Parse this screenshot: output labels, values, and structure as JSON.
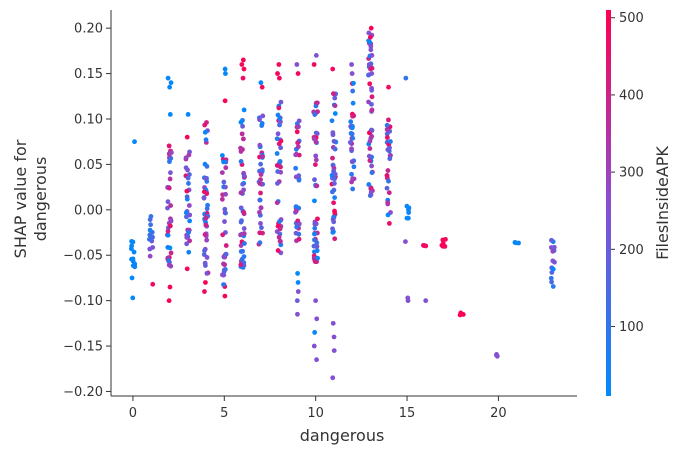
{
  "chart_data": {
    "type": "scatter",
    "title": "",
    "xlabel": "dangerous",
    "ylabel_line1": "SHAP value for",
    "ylabel_line2": "dangerous",
    "colorbar_label": "FilesInsideAPK",
    "xlim": [
      -1.2,
      24.3
    ],
    "ylim": [
      -0.205,
      0.22
    ],
    "x_ticks": [
      0,
      5,
      10,
      15,
      20
    ],
    "y_ticks": [
      -0.2,
      -0.15,
      -0.1,
      -0.05,
      0.0,
      0.05,
      0.1,
      0.15,
      0.2
    ],
    "y_tick_labels": [
      "−0.20",
      "−0.15",
      "−0.10",
      "−0.05",
      "0.00",
      "0.05",
      "0.10",
      "0.15",
      "0.20"
    ],
    "colorbar_range": [
      10,
      510
    ],
    "colorbar_ticks": [
      100,
      200,
      300,
      400,
      500
    ],
    "colormap": [
      "#008afb",
      "#ff0052"
    ],
    "grid": false,
    "columns": [
      {
        "x": 0,
        "range": [
          -0.065,
          -0.02
        ],
        "color_range": [
          15,
          30
        ],
        "extra": [
          [
            0.075,
            20
          ],
          [
            -0.097,
            15
          ],
          [
            -0.075,
            20
          ]
        ]
      },
      {
        "x": 1,
        "range": [
          -0.055,
          -0.005
        ],
        "color_range": [
          15,
          300
        ],
        "extra": [
          [
            -0.082,
            480
          ]
        ]
      },
      {
        "x": 2,
        "range": [
          -0.065,
          0.075
        ],
        "color_range": [
          15,
          500
        ],
        "extra": [
          [
            0.145,
            20
          ],
          [
            0.14,
            20
          ],
          [
            0.135,
            20
          ],
          [
            -0.085,
            500
          ],
          [
            -0.1,
            500
          ],
          [
            0.105,
            20
          ]
        ]
      },
      {
        "x": 3,
        "range": [
          -0.05,
          0.07
        ],
        "color_range": [
          15,
          500
        ],
        "extra": [
          [
            0.105,
            20
          ],
          [
            0.08,
            500
          ],
          [
            -0.065,
            480
          ]
        ]
      },
      {
        "x": 4,
        "range": [
          -0.07,
          0.1
        ],
        "color_range": [
          15,
          500
        ],
        "extra": [
          [
            -0.08,
            500
          ],
          [
            -0.09,
            480
          ]
        ]
      },
      {
        "x": 5,
        "range": [
          -0.085,
          0.06
        ],
        "color_range": [
          15,
          500
        ],
        "extra": [
          [
            0.155,
            20
          ],
          [
            0.15,
            20
          ],
          [
            0.12,
            500
          ],
          [
            -0.095,
            500
          ]
        ]
      },
      {
        "x": 6,
        "range": [
          -0.075,
          0.1
        ],
        "color_range": [
          15,
          500
        ],
        "extra": [
          [
            0.165,
            500
          ],
          [
            0.16,
            480
          ],
          [
            0.155,
            500
          ],
          [
            0.145,
            480
          ],
          [
            0.11,
            20
          ]
        ]
      },
      {
        "x": 7,
        "range": [
          -0.04,
          0.105
        ],
        "color_range": [
          15,
          500
        ],
        "extra": [
          [
            0.14,
            20
          ],
          [
            0.135,
            480
          ]
        ]
      },
      {
        "x": 8,
        "range": [
          -0.05,
          0.12
        ],
        "color_range": [
          15,
          500
        ],
        "extra": [
          [
            0.16,
            480
          ],
          [
            0.15,
            500
          ],
          [
            0.145,
            480
          ]
        ]
      },
      {
        "x": 9,
        "range": [
          -0.035,
          0.1
        ],
        "color_range": [
          15,
          500
        ],
        "extra": [
          [
            0.16,
            250
          ],
          [
            0.15,
            480
          ],
          [
            -0.07,
            20
          ],
          [
            -0.08,
            20
          ],
          [
            -0.09,
            250
          ],
          [
            -0.1,
            200
          ],
          [
            -0.115,
            250
          ]
        ]
      },
      {
        "x": 10,
        "range": [
          -0.06,
          0.12
        ],
        "color_range": [
          15,
          500
        ],
        "extra": [
          [
            0.17,
            250
          ],
          [
            0.16,
            480
          ],
          [
            -0.1,
            250
          ],
          [
            -0.12,
            250
          ],
          [
            -0.135,
            20
          ],
          [
            -0.15,
            250
          ],
          [
            -0.165,
            250
          ]
        ]
      },
      {
        "x": 11,
        "range": [
          -0.035,
          0.13
        ],
        "color_range": [
          15,
          500
        ],
        "extra": [
          [
            0.155,
            480
          ],
          [
            -0.125,
            250
          ],
          [
            -0.14,
            250
          ],
          [
            -0.155,
            250
          ],
          [
            -0.185,
            250
          ]
        ]
      },
      {
        "x": 12,
        "range": [
          0.02,
          0.14
        ],
        "color_range": [
          15,
          500
        ],
        "extra": [
          [
            0.16,
            250
          ],
          [
            0.15,
            250
          ]
        ]
      },
      {
        "x": 13,
        "range": [
          0.01,
          0.2
        ],
        "color_range": [
          15,
          500
        ],
        "extra": [
          [
            0.2,
            500
          ],
          [
            0.19,
            480
          ],
          [
            0.18,
            250
          ],
          [
            0.17,
            250
          ],
          [
            0.16,
            250
          ],
          [
            0.15,
            250
          ]
        ]
      },
      {
        "x": 14,
        "range": [
          -0.015,
          0.1
        ],
        "color_range": [
          15,
          500
        ],
        "extra": [
          [
            0.135,
            480
          ]
        ]
      },
      {
        "x": 15,
        "range": [
          -0.01,
          0.01
        ],
        "color_range": [
          15,
          30
        ],
        "extra": [
          [
            0.145,
            100
          ],
          [
            -0.035,
            250
          ],
          [
            -0.1,
            250
          ],
          [
            -0.097,
            250
          ]
        ]
      },
      {
        "x": 16,
        "range": [
          -0.04,
          -0.04
        ],
        "color_range": [
          480,
          500
        ],
        "extra": [
          [
            -0.1,
            250
          ]
        ]
      },
      {
        "x": 17,
        "range": [
          -0.05,
          -0.025
        ],
        "color_range": [
          480,
          500
        ],
        "extra": []
      },
      {
        "x": 18,
        "range": [
          -0.115,
          -0.115
        ],
        "color_range": [
          500,
          500
        ],
        "extra": []
      },
      {
        "x": 20,
        "range": [
          -0.16,
          -0.16
        ],
        "color_range": [
          250,
          250
        ],
        "extra": []
      },
      {
        "x": 21,
        "range": [
          -0.035,
          -0.035
        ],
        "color_range": [
          20,
          20
        ],
        "extra": []
      },
      {
        "x": 23,
        "range": [
          -0.095,
          -0.03
        ],
        "color_range": [
          15,
          300
        ],
        "extra": []
      }
    ]
  }
}
